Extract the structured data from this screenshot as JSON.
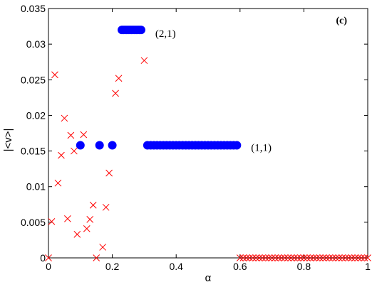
{
  "chart_data": {
    "type": "scatter",
    "xlabel": "α",
    "ylabel": "|<v>|",
    "xlim": [
      0,
      1
    ],
    "ylim": [
      0,
      0.035
    ],
    "xticks": [
      "0",
      "0.2",
      "0.4",
      "0.6",
      "0.8",
      "1"
    ],
    "xtick_values": [
      0,
      0.2,
      0.4,
      0.6,
      0.8,
      1
    ],
    "yticks": [
      "0",
      "0.005",
      "0.01",
      "0.015",
      "0.02",
      "0.025",
      "0.03",
      "0.035"
    ],
    "ytick_values": [
      0,
      0.005,
      0.01,
      0.015,
      0.02,
      0.025,
      0.03,
      0.035
    ],
    "grid": false,
    "panel_label": "(c)",
    "annotations": [
      {
        "text": "(2,1)",
        "x": 0.33,
        "y": 0.0318
      },
      {
        "text": "(1,1)",
        "x": 0.63,
        "y": 0.0158
      }
    ],
    "series": [
      {
        "marker": "x",
        "color": "#ff0000",
        "points": [
          [
            0.0,
            0.0
          ],
          [
            0.01,
            0.0051
          ],
          [
            0.02,
            0.0257
          ],
          [
            0.03,
            0.0105
          ],
          [
            0.04,
            0.0144
          ],
          [
            0.05,
            0.0196
          ],
          [
            0.06,
            0.0055
          ],
          [
            0.07,
            0.0172
          ],
          [
            0.08,
            0.015
          ],
          [
            0.09,
            0.0033
          ],
          [
            0.11,
            0.0173
          ],
          [
            0.12,
            0.0041
          ],
          [
            0.13,
            0.0054
          ],
          [
            0.14,
            0.0074
          ],
          [
            0.15,
            0.0
          ],
          [
            0.17,
            0.0015
          ],
          [
            0.18,
            0.0071
          ],
          [
            0.19,
            0.0119
          ],
          [
            0.21,
            0.0231
          ],
          [
            0.22,
            0.0252
          ],
          [
            0.3,
            0.0277
          ],
          [
            0.6,
            0.0
          ],
          [
            0.61,
            0.0
          ],
          [
            0.62,
            0.0
          ],
          [
            0.63,
            0.0
          ],
          [
            0.64,
            0.0
          ],
          [
            0.65,
            0.0
          ],
          [
            0.66,
            0.0
          ],
          [
            0.67,
            0.0
          ],
          [
            0.68,
            0.0
          ],
          [
            0.69,
            0.0
          ],
          [
            0.7,
            0.0
          ],
          [
            0.71,
            0.0
          ],
          [
            0.72,
            0.0
          ],
          [
            0.73,
            0.0
          ],
          [
            0.74,
            0.0
          ],
          [
            0.75,
            0.0
          ],
          [
            0.76,
            0.0
          ],
          [
            0.77,
            0.0
          ],
          [
            0.78,
            0.0
          ],
          [
            0.79,
            0.0
          ],
          [
            0.8,
            0.0
          ],
          [
            0.81,
            0.0
          ],
          [
            0.82,
            0.0
          ],
          [
            0.83,
            0.0
          ],
          [
            0.84,
            0.0
          ],
          [
            0.85,
            0.0
          ],
          [
            0.86,
            0.0
          ],
          [
            0.87,
            0.0
          ],
          [
            0.88,
            0.0
          ],
          [
            0.89,
            0.0
          ],
          [
            0.9,
            0.0
          ],
          [
            0.91,
            0.0
          ],
          [
            0.92,
            0.0
          ],
          [
            0.93,
            0.0
          ],
          [
            0.94,
            0.0
          ],
          [
            0.95,
            0.0
          ],
          [
            0.96,
            0.0
          ],
          [
            0.97,
            0.0
          ],
          [
            0.98,
            0.0
          ],
          [
            0.99,
            0.0
          ],
          [
            1.0,
            0.0
          ]
        ]
      },
      {
        "marker": "filled-circle",
        "color": "#0000ff",
        "points": [
          [
            0.23,
            0.032
          ],
          [
            0.235,
            0.032
          ],
          [
            0.24,
            0.032
          ],
          [
            0.245,
            0.032
          ],
          [
            0.25,
            0.032
          ],
          [
            0.255,
            0.032
          ],
          [
            0.26,
            0.032
          ],
          [
            0.265,
            0.032
          ],
          [
            0.27,
            0.032
          ],
          [
            0.275,
            0.032
          ],
          [
            0.28,
            0.032
          ],
          [
            0.285,
            0.032
          ],
          [
            0.29,
            0.032
          ],
          [
            0.1,
            0.0158
          ],
          [
            0.16,
            0.0158
          ],
          [
            0.2,
            0.0158
          ],
          [
            0.31,
            0.0158
          ],
          [
            0.32,
            0.0158
          ],
          [
            0.33,
            0.0158
          ],
          [
            0.34,
            0.0158
          ],
          [
            0.35,
            0.0158
          ],
          [
            0.36,
            0.0158
          ],
          [
            0.37,
            0.0158
          ],
          [
            0.38,
            0.0158
          ],
          [
            0.39,
            0.0158
          ],
          [
            0.4,
            0.0158
          ],
          [
            0.41,
            0.0158
          ],
          [
            0.42,
            0.0158
          ],
          [
            0.43,
            0.0158
          ],
          [
            0.44,
            0.0158
          ],
          [
            0.45,
            0.0158
          ],
          [
            0.46,
            0.0158
          ],
          [
            0.47,
            0.0158
          ],
          [
            0.48,
            0.0158
          ],
          [
            0.49,
            0.0158
          ],
          [
            0.5,
            0.0158
          ],
          [
            0.51,
            0.0158
          ],
          [
            0.52,
            0.0158
          ],
          [
            0.53,
            0.0158
          ],
          [
            0.54,
            0.0158
          ],
          [
            0.55,
            0.0158
          ],
          [
            0.56,
            0.0158
          ],
          [
            0.57,
            0.0158
          ],
          [
            0.58,
            0.0158
          ],
          [
            0.59,
            0.0158
          ]
        ]
      }
    ]
  }
}
